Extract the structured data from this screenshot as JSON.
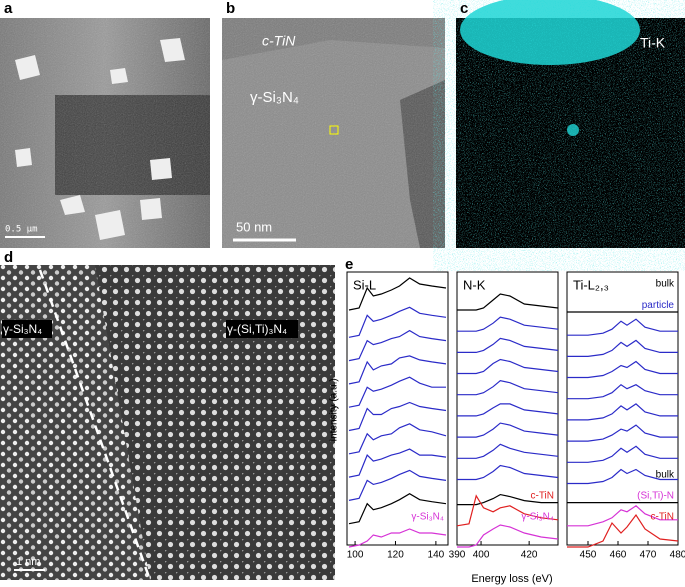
{
  "panels": [
    {
      "label": "a",
      "scale_bar": "0.5 μm"
    },
    {
      "label": "b",
      "phase_top": "c-TiN",
      "phase_main": "γ-Si₃N₄",
      "scale_bar": "50 nm"
    },
    {
      "label": "c",
      "element": "Ti-K"
    },
    {
      "label": "d",
      "phase_left": "γ-Si₃N₄",
      "phase_right": "γ-(Si,Ti)₃N₄",
      "scale_bar": "1 nm"
    },
    {
      "label": "e"
    }
  ],
  "spectra": {
    "xlabel": "Energy loss (eV)",
    "ylabel": "Intensity (a.u.)"
  },
  "chart_data": [
    {
      "type": "line",
      "title": "Si-L",
      "x": [
        97,
        102,
        106,
        109,
        113,
        118,
        122,
        127,
        132,
        138,
        145
      ],
      "xlim": [
        96,
        146
      ],
      "xticks": [
        100,
        120,
        140
      ],
      "series": [
        {
          "name": null,
          "color": "#000000",
          "values": [
            0.2,
            0.3,
            1.3,
            0.9,
            1.0,
            1.2,
            1.4,
            1.8,
            1.5,
            1.4,
            1.3
          ]
        },
        {
          "name": null,
          "color": "#2b2bc8",
          "values": [
            0,
            0.1,
            1.1,
            0.8,
            0.9,
            1.1,
            1.3,
            1.5,
            1.2,
            1.1,
            1.0
          ]
        },
        {
          "name": null,
          "color": "#2b2bc8",
          "values": [
            0,
            0.1,
            1.0,
            0.8,
            0.9,
            1.1,
            1.2,
            1.5,
            1.2,
            1.1,
            1.0
          ]
        },
        {
          "name": null,
          "color": "#2b2bc8",
          "values": [
            0,
            0.1,
            1.1,
            0.7,
            0.9,
            1.0,
            1.3,
            1.4,
            1.2,
            1.1,
            1.0
          ]
        },
        {
          "name": null,
          "color": "#2b2bc8",
          "values": [
            0,
            0.1,
            1.0,
            0.8,
            0.9,
            1.1,
            1.3,
            1.5,
            1.2,
            1.0,
            1.0
          ]
        },
        {
          "name": null,
          "color": "#2b2bc8",
          "values": [
            0,
            0.1,
            1.1,
            0.8,
            0.8,
            1.1,
            1.2,
            1.4,
            1.2,
            1.1,
            1.0
          ]
        },
        {
          "name": null,
          "color": "#2b2bc8",
          "values": [
            0,
            0.1,
            1.0,
            0.7,
            0.9,
            1.0,
            1.3,
            1.5,
            1.2,
            1.1,
            0.9
          ]
        },
        {
          "name": null,
          "color": "#2b2bc8",
          "values": [
            0,
            0.1,
            1.1,
            0.8,
            0.9,
            1.1,
            1.2,
            1.4,
            1.1,
            1.1,
            1.0
          ]
        },
        {
          "name": null,
          "color": "#2b2bc8",
          "values": [
            0,
            0.1,
            1.0,
            0.8,
            0.9,
            1.1,
            1.3,
            1.5,
            1.2,
            1.1,
            1.0
          ]
        },
        {
          "name": null,
          "color": "#000000",
          "values": [
            0,
            0.1,
            1.0,
            0.7,
            0.8,
            1.0,
            1.2,
            1.5,
            1.2,
            1.1,
            1.0
          ]
        },
        {
          "name": "γ-Si₃N₄",
          "color": "#d633d6",
          "values": [
            0,
            0.1,
            0.3,
            0.6,
            0.5,
            0.7,
            0.7,
            0.9,
            0.7,
            0.7,
            0.6
          ]
        }
      ]
    },
    {
      "type": "line",
      "title": "N-K",
      "x": [
        390,
        395,
        398,
        401,
        405,
        408,
        412,
        418,
        425,
        432
      ],
      "xlim": [
        390,
        432
      ],
      "xticks": [
        390,
        400,
        420
      ],
      "series": [
        {
          "name": null,
          "color": "#000000",
          "values": [
            0.2,
            0.2,
            0.2,
            0.3,
            0.7,
            1.0,
            0.9,
            0.5,
            0.4,
            0.3
          ]
        },
        {
          "name": null,
          "color": "#2b2bc8",
          "values": [
            0.2,
            0.2,
            0.2,
            0.3,
            0.6,
            0.9,
            0.8,
            0.5,
            0.4,
            0.3
          ]
        },
        {
          "name": null,
          "color": "#2b2bc8",
          "values": [
            0.2,
            0.2,
            0.2,
            0.3,
            0.6,
            0.9,
            0.8,
            0.5,
            0.4,
            0.3
          ]
        },
        {
          "name": null,
          "color": "#2b2bc8",
          "values": [
            0.2,
            0.2,
            0.2,
            0.3,
            0.7,
            0.9,
            0.8,
            0.5,
            0.4,
            0.3
          ]
        },
        {
          "name": null,
          "color": "#2b2bc8",
          "values": [
            0.2,
            0.2,
            0.2,
            0.3,
            0.6,
            0.9,
            0.8,
            0.5,
            0.4,
            0.3
          ]
        },
        {
          "name": null,
          "color": "#2b2bc8",
          "values": [
            0.2,
            0.2,
            0.2,
            0.3,
            0.6,
            0.8,
            0.8,
            0.5,
            0.4,
            0.3
          ]
        },
        {
          "name": null,
          "color": "#2b2bc8",
          "values": [
            0.2,
            0.2,
            0.2,
            0.3,
            0.6,
            0.9,
            0.8,
            0.5,
            0.4,
            0.3
          ]
        },
        {
          "name": null,
          "color": "#2b2bc8",
          "values": [
            0.2,
            0.2,
            0.2,
            0.3,
            0.6,
            0.9,
            0.7,
            0.5,
            0.4,
            0.3
          ]
        },
        {
          "name": null,
          "color": "#2b2bc8",
          "values": [
            0.2,
            0.2,
            0.2,
            0.3,
            0.6,
            0.9,
            0.8,
            0.5,
            0.4,
            0.3
          ]
        },
        {
          "name": null,
          "color": "#000000",
          "values": [
            0,
            0,
            0,
            0.1,
            0.3,
            0.5,
            0.4,
            0.2,
            0.1,
            0.1
          ]
        },
        {
          "name": "c-TiN",
          "color": "#e02020",
          "values": [
            0,
            0.1,
            1.5,
            0.9,
            0.7,
            0.9,
            1.0,
            0.6,
            0.4,
            0.3
          ]
        },
        {
          "name": "γ-Si₃N₄",
          "color": "#d633d6",
          "values": [
            0,
            0,
            0.1,
            0.6,
            0.9,
            1.1,
            1.0,
            0.7,
            0.5,
            0.4
          ]
        }
      ]
    },
    {
      "type": "line",
      "title": "Ti-L₂,₃",
      "x": [
        443,
        450,
        455,
        458,
        461,
        463,
        466,
        469,
        474,
        480
      ],
      "xlim": [
        443,
        480
      ],
      "xticks": [
        450,
        460,
        470,
        480
      ],
      "series": [
        {
          "name": "bulk",
          "color": "#000000",
          "values": [
            0.1,
            0.1,
            0.1,
            0.1,
            0.1,
            0.1,
            0.1,
            0.1,
            0.1,
            0.1
          ]
        },
        {
          "name": "particle",
          "color": "#2b2bc8",
          "values": [
            0,
            0,
            0.1,
            0.3,
            0.7,
            0.5,
            0.8,
            0.4,
            0.2,
            0.2
          ]
        },
        {
          "name": null,
          "color": "#2b2bc8",
          "values": [
            0,
            0,
            0.1,
            0.3,
            0.7,
            0.5,
            0.8,
            0.4,
            0.2,
            0.2
          ]
        },
        {
          "name": null,
          "color": "#2b2bc8",
          "values": [
            0,
            0,
            0.1,
            0.3,
            0.6,
            0.5,
            0.8,
            0.4,
            0.2,
            0.2
          ]
        },
        {
          "name": null,
          "color": "#2b2bc8",
          "values": [
            0,
            0,
            0.1,
            0.3,
            0.7,
            0.5,
            0.7,
            0.4,
            0.2,
            0.2
          ]
        },
        {
          "name": null,
          "color": "#2b2bc8",
          "values": [
            0,
            0,
            0.1,
            0.3,
            0.7,
            0.5,
            0.8,
            0.4,
            0.2,
            0.2
          ]
        },
        {
          "name": null,
          "color": "#2b2bc8",
          "values": [
            0,
            0,
            0.1,
            0.3,
            0.6,
            0.5,
            0.8,
            0.4,
            0.2,
            0.2
          ]
        },
        {
          "name": null,
          "color": "#2b2bc8",
          "values": [
            0,
            0,
            0.1,
            0.3,
            0.7,
            0.5,
            0.8,
            0.4,
            0.2,
            0.2
          ]
        },
        {
          "name": null,
          "color": "#2b2bc8",
          "values": [
            0,
            0,
            0.1,
            0.3,
            0.7,
            0.5,
            0.7,
            0.4,
            0.2,
            0.2
          ]
        },
        {
          "name": "bulk",
          "color": "#000000",
          "values": [
            0.1,
            0.1,
            0.1,
            0.1,
            0.1,
            0.1,
            0.1,
            0.1,
            0.1,
            0.1
          ]
        },
        {
          "name": "(Si,Ti)-N",
          "color": "#d633d6",
          "values": [
            0,
            0,
            0.2,
            0.4,
            0.8,
            0.7,
            1.0,
            0.6,
            0.3,
            0.3
          ]
        },
        {
          "name": "c-TiN",
          "color": "#e02020",
          "values": [
            0,
            0,
            0.3,
            1.2,
            0.7,
            1.0,
            1.6,
            0.9,
            0.4,
            0.3
          ]
        }
      ]
    }
  ]
}
